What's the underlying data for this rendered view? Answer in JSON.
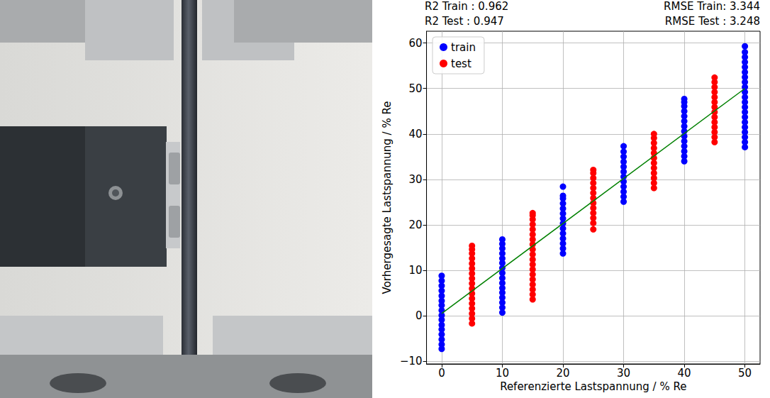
{
  "chart_data": {
    "type": "scatter",
    "annotations": [
      "R2 Train : 0.962",
      "R2 Test : 0.947",
      "RMSE Train: 3.344",
      "RMSE Test : 3.248"
    ],
    "x_label": "Referenzierte Lastspannung / % Re",
    "y_label": "Vorhergesagte Lastspannung / % Re",
    "xlim": [
      -2.5,
      52.5
    ],
    "xticks": [
      0,
      10,
      20,
      30,
      40,
      50
    ],
    "ylim": [
      -10.6,
      62.6
    ],
    "yticks": [
      {
        "value": -10,
        "label": "−10"
      },
      0,
      10,
      20,
      30,
      40,
      50,
      60
    ],
    "grid": true,
    "legend": "upper left",
    "series": [
      {
        "name": "train",
        "color": "#0000ff",
        "marker": "circle",
        "points": [
          {
            "x": 0,
            "values": [
              -7.3,
              -6.3,
              -5.2,
              -4.1,
              -3.0,
              -2.0,
              -0.9,
              0.1,
              1.2,
              2.3,
              3.3,
              4.4,
              5.5,
              6.6,
              7.7,
              8.8
            ]
          },
          {
            "x": 10,
            "values": [
              0.7,
              1.8,
              2.9,
              4.0,
              5.1,
              6.1,
              7.2,
              8.3,
              9.4,
              10.5,
              11.6,
              12.6,
              13.7,
              14.8,
              15.8,
              16.8
            ]
          },
          {
            "x": 20,
            "values": [
              13.7,
              14.8,
              15.9,
              17.0,
              18.1,
              19.2,
              20.3,
              21.4,
              22.5,
              23.6,
              24.7,
              25.8,
              26.4,
              28.4
            ]
          },
          {
            "x": 30,
            "values": [
              25.1,
              26.2,
              27.3,
              28.4,
              29.5,
              30.6,
              31.7,
              32.8,
              33.9,
              35.0,
              36.1,
              37.3
            ]
          },
          {
            "x": 40,
            "values": [
              34.0,
              35.1,
              36.2,
              37.3,
              38.4,
              39.5,
              40.6,
              41.7,
              42.8,
              43.9,
              45.0,
              46.1,
              47.0,
              47.7
            ]
          },
          {
            "x": 50,
            "values": [
              37.1,
              38.2,
              39.3,
              40.4,
              41.5,
              42.6,
              43.7,
              44.8,
              45.9,
              47.0,
              48.1,
              49.2,
              50.3,
              51.4,
              52.5,
              53.6,
              54.7,
              55.8,
              56.9,
              58.0,
              59.3
            ]
          }
        ]
      },
      {
        "name": "test",
        "color": "#ff0000",
        "marker": "circle",
        "points": [
          {
            "x": 5,
            "values": [
              -1.7,
              -0.6,
              0.5,
              1.6,
              2.7,
              3.8,
              4.9,
              6.0,
              7.1,
              8.2,
              9.3,
              10.4,
              11.5,
              12.6,
              13.7,
              14.6,
              15.4
            ]
          },
          {
            "x": 15,
            "values": [
              3.6,
              4.7,
              5.8,
              6.9,
              8.0,
              9.1,
              10.2,
              11.3,
              12.4,
              13.5,
              14.6,
              15.7,
              16.8,
              17.9,
              19.0,
              20.1,
              21.2,
              22.1,
              22.6
            ]
          },
          {
            "x": 25,
            "values": [
              19.0,
              20.4,
              21.5,
              22.6,
              23.7,
              24.8,
              25.9,
              27.0,
              28.1,
              29.2,
              30.3,
              31.4,
              32.1
            ]
          },
          {
            "x": 35,
            "values": [
              28.1,
              29.2,
              30.3,
              31.4,
              32.5,
              33.6,
              34.7,
              35.8,
              36.9,
              38.0,
              39.1,
              40.0
            ]
          },
          {
            "x": 45,
            "values": [
              38.2,
              39.3,
              40.4,
              41.5,
              42.6,
              43.7,
              44.8,
              45.9,
              47.0,
              48.1,
              49.2,
              50.3,
              51.4,
              52.4
            ]
          }
        ]
      },
      {
        "type": "line",
        "color": "#008000",
        "line_style": "solid",
        "x": [
          0,
          50
        ],
        "values": [
          0.5,
          50
        ]
      }
    ]
  }
}
